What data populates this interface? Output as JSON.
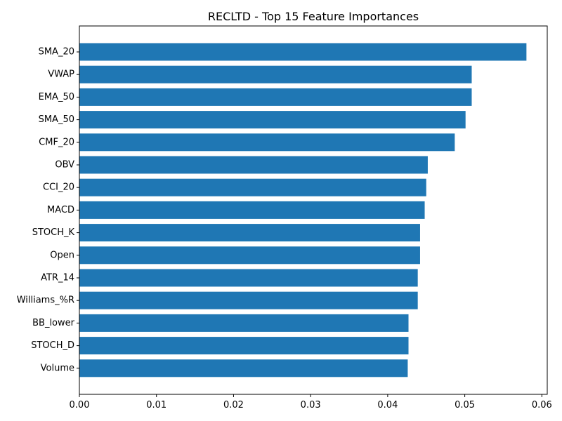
{
  "chart_data": {
    "type": "bar",
    "orientation": "horizontal",
    "title": "RECLTD - Top 15 Feature Importances",
    "xlabel": "",
    "ylabel": "",
    "categories": [
      "SMA_20",
      "VWAP",
      "EMA_50",
      "SMA_50",
      "CMF_20",
      "OBV",
      "CCI_20",
      "MACD",
      "STOCH_K",
      "Open",
      "ATR_14",
      "Williams_%R",
      "BB_lower",
      "STOCH_D",
      "Volume"
    ],
    "values": [
      0.058,
      0.0509,
      0.0509,
      0.0501,
      0.0487,
      0.0452,
      0.045,
      0.0448,
      0.0442,
      0.0442,
      0.0439,
      0.0439,
      0.0427,
      0.0427,
      0.0426
    ],
    "xlim": [
      0,
      0.0607
    ],
    "xticks": [
      "0.00",
      "0.01",
      "0.02",
      "0.03",
      "0.04",
      "0.05",
      "0.06"
    ],
    "bar_color": "#1f77b4",
    "grid": false,
    "legend": "none"
  }
}
